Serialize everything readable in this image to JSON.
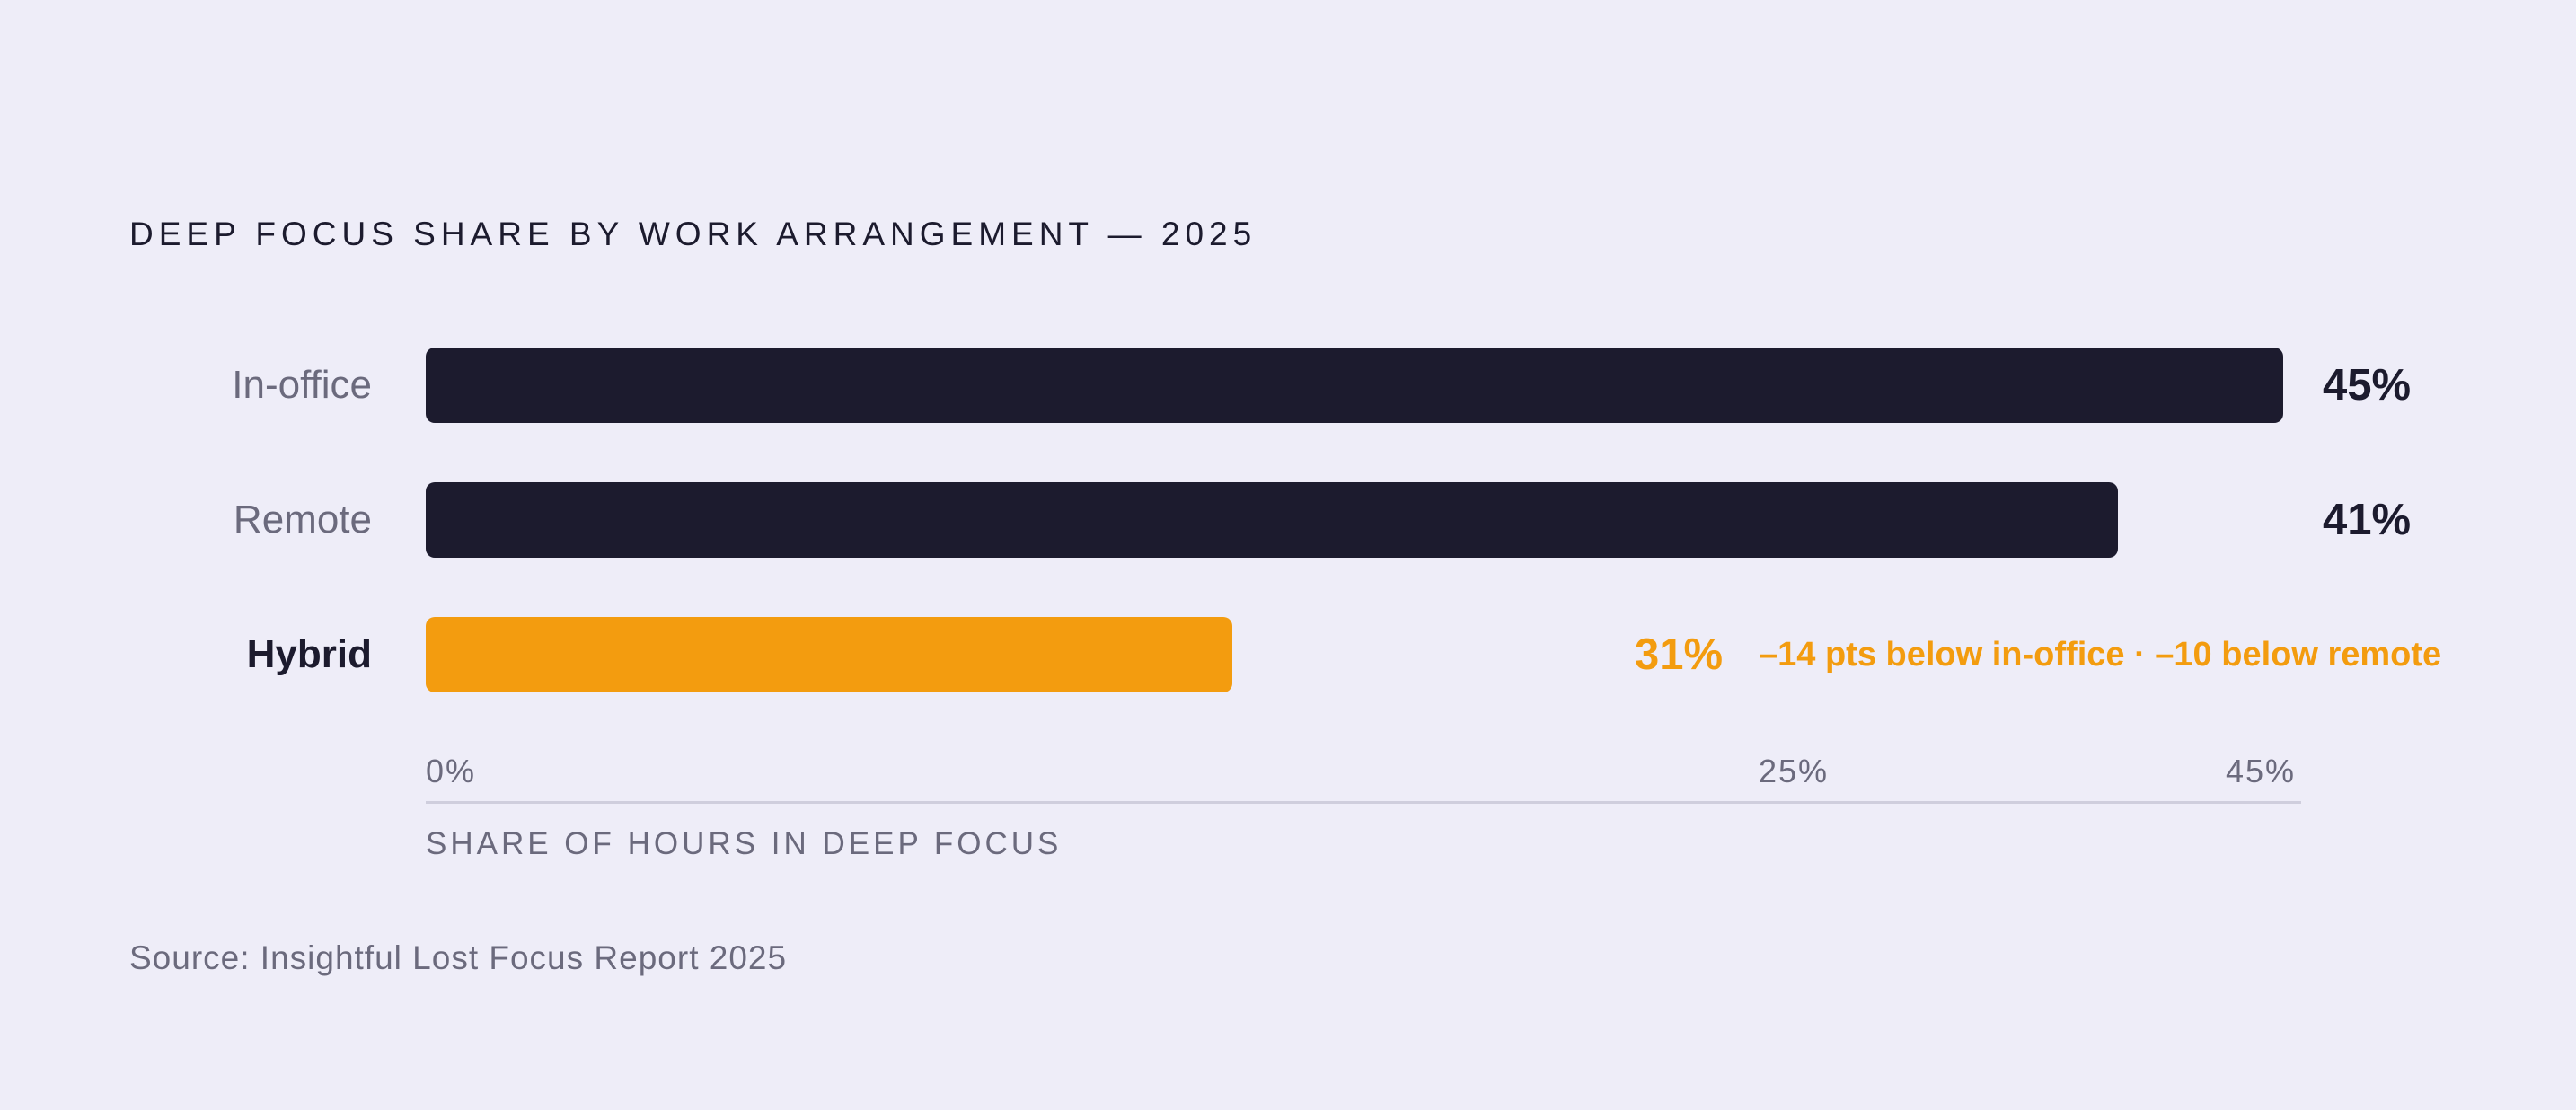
{
  "chart_data": {
    "type": "bar",
    "orientation": "horizontal",
    "title": "DEEP FOCUS SHARE BY WORK ARRANGEMENT — 2025",
    "categories": [
      "In-office",
      "Remote",
      "Hybrid"
    ],
    "values": [
      45,
      41,
      31
    ],
    "value_labels": [
      "45%",
      "41%",
      "31%"
    ],
    "highlight": "Hybrid",
    "annotation": "–14 pts below in-office · –10 below remote",
    "x_ticks": [
      "0%",
      "25%",
      "45%"
    ],
    "xlabel": "SHARE OF HOURS IN DEEP FOCUS",
    "ylabel": "",
    "xlim": [
      0,
      45
    ],
    "grid": false,
    "colors": {
      "default": "#1c1b2e",
      "highlight": "#f39c0f"
    }
  },
  "source": "Source: Insightful Lost Focus Report 2025"
}
